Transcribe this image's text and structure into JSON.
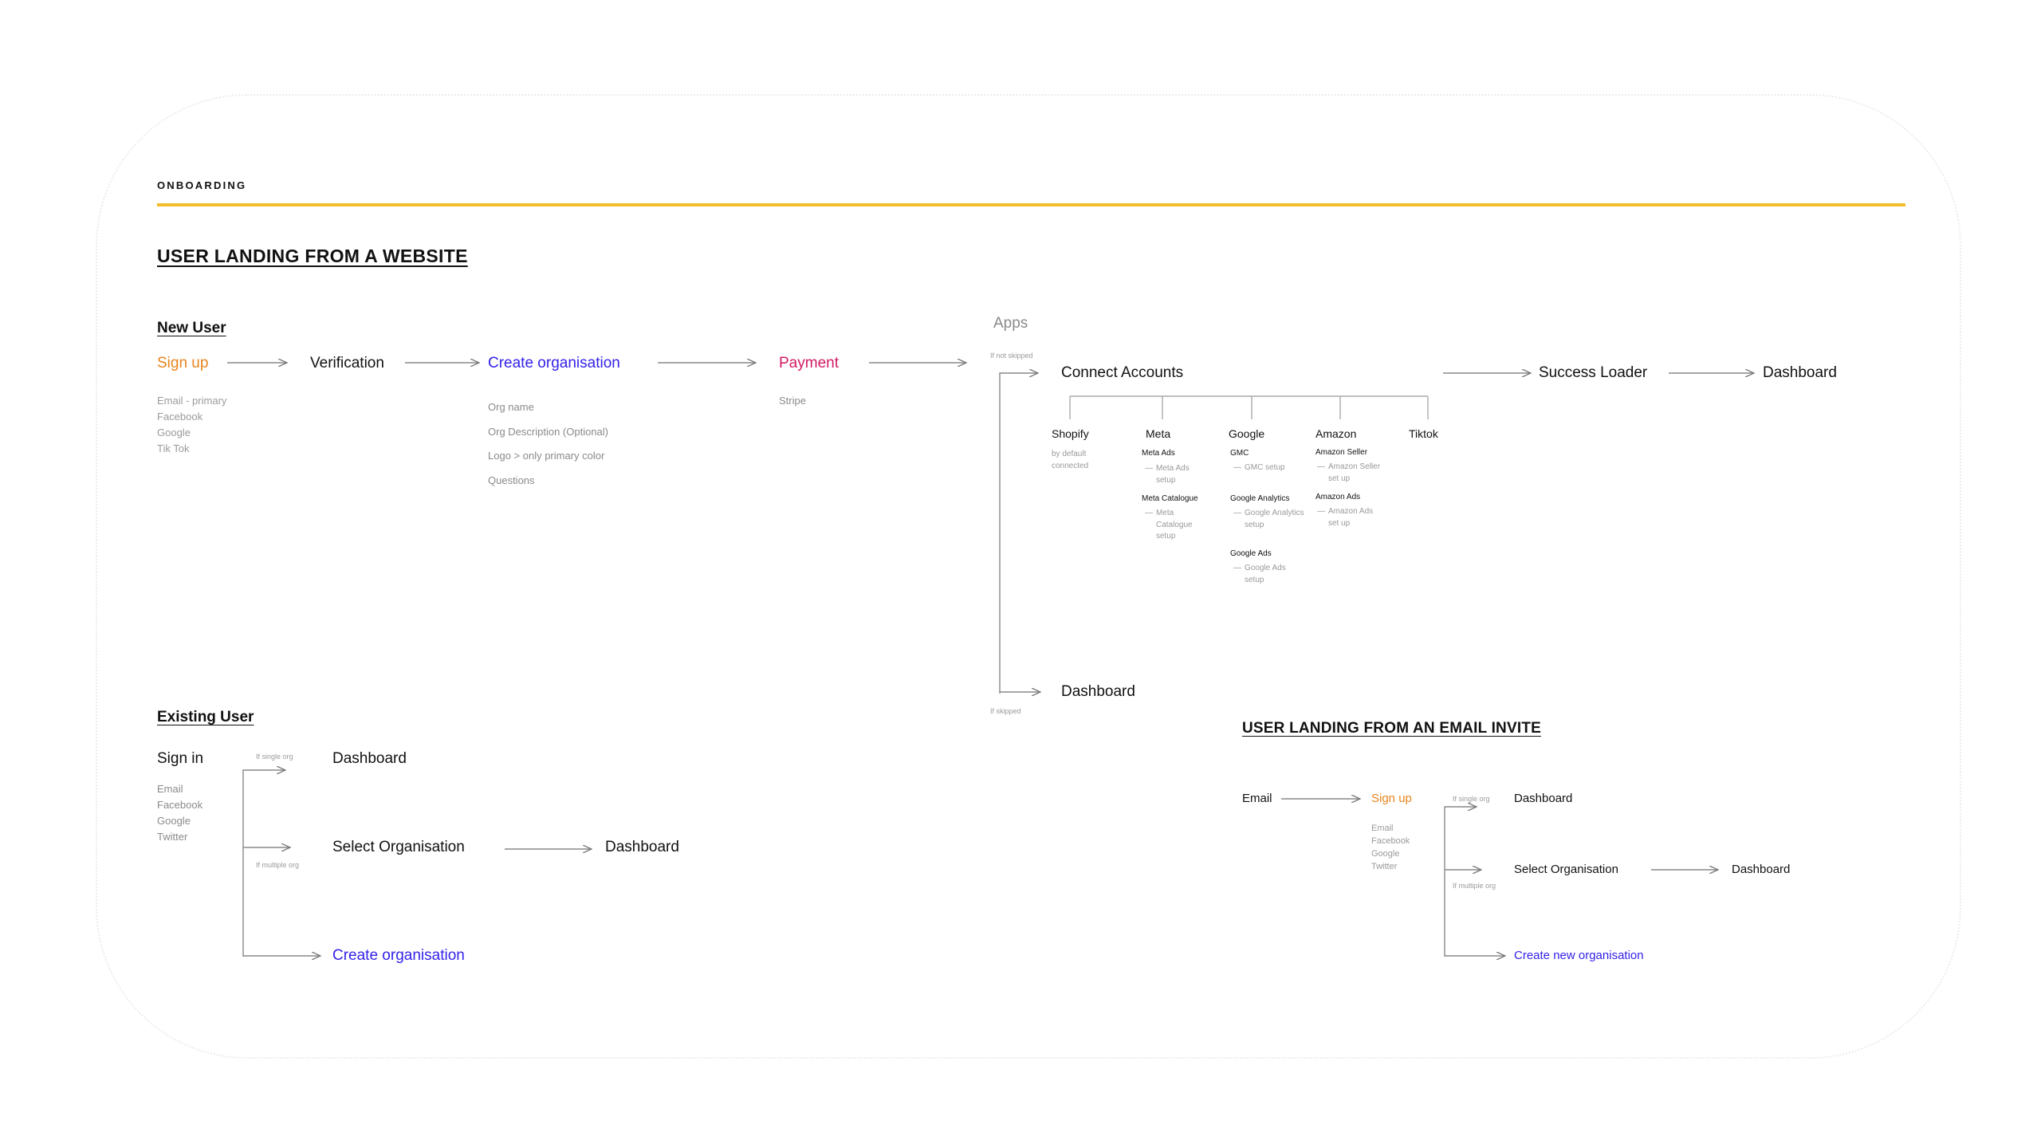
{
  "section_label": "ONBOARDING",
  "website": {
    "heading": "USER LANDING FROM A WEBSITE",
    "new_user": {
      "label": "New User",
      "sign_up": "Sign up",
      "sign_up_methods": [
        "Email - primary",
        "Facebook",
        "Google",
        "Tik Tok"
      ],
      "verification": "Verification",
      "create_org": "Create organisation",
      "create_org_fields": [
        "Org name",
        "Org Description (Optional)",
        "Logo > only primary color",
        "Questions"
      ],
      "payment": "Payment",
      "payment_provider": "Stripe"
    },
    "apps": {
      "title": "Apps",
      "if_not_skipped": "If not skipped",
      "if_skipped": "If skipped",
      "connect_accounts": "Connect Accounts",
      "success_loader": "Success Loader",
      "dashboard_top": "Dashboard",
      "dashboard_skipped": "Dashboard",
      "shopify": {
        "name": "Shopify",
        "note": "by default connected"
      },
      "meta": {
        "name": "Meta",
        "ads": "Meta Ads",
        "ads_setup": "Meta Ads setup",
        "catalogue": "Meta Catalogue",
        "catalogue_setup": "Meta Catalogue setup"
      },
      "google": {
        "name": "Google",
        "gmc": "GMC",
        "gmc_setup": "GMC setup",
        "analytics": "Google Analytics",
        "analytics_setup": "Google Analytics setup",
        "ads": "Google Ads",
        "ads_setup": "Google Ads setup"
      },
      "amazon": {
        "name": "Amazon",
        "seller": "Amazon Seller",
        "seller_setup": "Amazon Seller set up",
        "ads": "Amazon Ads",
        "ads_setup": "Amazon Ads set up"
      },
      "tiktok": {
        "name": "Tiktok"
      }
    },
    "existing_user": {
      "label": "Existing User",
      "sign_in": "Sign in",
      "sign_in_methods": [
        "Email",
        "Facebook",
        "Google",
        "Twitter"
      ],
      "if_single_org": "If single org",
      "if_multiple_org": "If multiple org",
      "dashboard_single": "Dashboard",
      "select_org": "Select Organisation",
      "dashboard_multi": "Dashboard",
      "create_org": "Create organisation"
    }
  },
  "email_invite": {
    "heading": "USER LANDING FROM AN EMAIL INVITE",
    "email": "Email",
    "sign_up": "Sign up",
    "sign_up_methods": [
      "Email",
      "Facebook",
      "Google",
      "Twitter"
    ],
    "if_single_org": "If single org",
    "if_multiple_org": "If multiple org",
    "dashboard_single": "Dashboard",
    "select_org": "Select Organisation",
    "dashboard_multi": "Dashboard",
    "create_new_org": "Create new organisation"
  },
  "colors": {
    "sign_up": "#e8841e",
    "create_org": "#3322e8",
    "payment": "#d11a63",
    "rule": "#f2bd2a",
    "muted": "#8a8a8a",
    "line": "#888888"
  }
}
